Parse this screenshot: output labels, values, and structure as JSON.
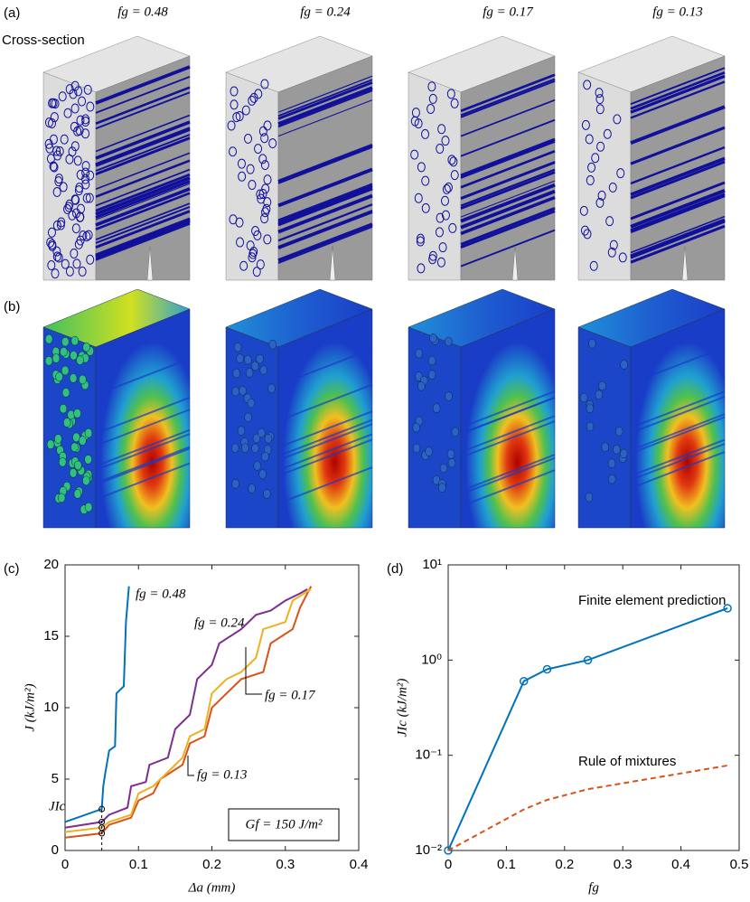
{
  "panel_a": {
    "label": "(a)",
    "cross_section": "Cross-section",
    "titles": [
      "fg = 0.48",
      "fg = 0.24",
      "fg = 0.17",
      "fg = 0.13"
    ]
  },
  "panel_b": {
    "label": "(b)"
  },
  "chart_data": [
    {
      "type": "line",
      "panel_label": "(c)",
      "x_label": "Δa (mm)",
      "y_label": "J (kJ/m²)",
      "xlim": [
        0,
        0.4
      ],
      "xticks": [
        0,
        0.1,
        0.2,
        0.3,
        0.4
      ],
      "ylim": [
        0,
        20
      ],
      "yticks": [
        0,
        5,
        10,
        15,
        20
      ],
      "annotations": [
        "fg = 0.48",
        "fg = 0.24",
        "fg = 0.17",
        "fg = 0.13",
        "JIc",
        "Gf = 150 J/m²"
      ],
      "series": [
        {
          "name": "fg = 0.48",
          "color": "#0072bd",
          "x": [
            0,
            0.05,
            0.052,
            0.055,
            0.06,
            0.068,
            0.07,
            0.08,
            0.083,
            0.087
          ],
          "values": [
            2.0,
            2.9,
            4.5,
            5.5,
            7.0,
            7.3,
            11.0,
            11.5,
            16.0,
            18.5
          ]
        },
        {
          "name": "fg = 0.24",
          "color": "#7e2f8e",
          "x": [
            0,
            0.05,
            0.06,
            0.085,
            0.09,
            0.11,
            0.115,
            0.14,
            0.15,
            0.17,
            0.18,
            0.2,
            0.21,
            0.24,
            0.26,
            0.28,
            0.3,
            0.32,
            0.33
          ],
          "values": [
            1.6,
            2.0,
            2.5,
            3.0,
            4.5,
            4.8,
            6.0,
            6.5,
            8.5,
            9.5,
            12.0,
            13.0,
            14.5,
            15.5,
            16.5,
            16.8,
            17.5,
            18.0,
            18.3
          ]
        },
        {
          "name": "fg = 0.17",
          "color": "#d95319",
          "x": [
            0,
            0.05,
            0.06,
            0.09,
            0.1,
            0.12,
            0.13,
            0.16,
            0.17,
            0.19,
            0.2,
            0.22,
            0.24,
            0.27,
            0.28,
            0.31,
            0.32,
            0.335
          ],
          "values": [
            0.9,
            1.2,
            1.8,
            2.3,
            3.5,
            4.0,
            5.0,
            6.0,
            7.5,
            8.0,
            10.0,
            11.0,
            12.0,
            12.5,
            14.5,
            15.5,
            17.0,
            18.5
          ]
        },
        {
          "name": "fg = 0.13",
          "color": "#edb120",
          "x": [
            0,
            0.05,
            0.06,
            0.09,
            0.1,
            0.12,
            0.14,
            0.16,
            0.17,
            0.19,
            0.2,
            0.22,
            0.24,
            0.26,
            0.27,
            0.3,
            0.31,
            0.335
          ],
          "values": [
            1.3,
            1.6,
            2.0,
            2.5,
            4.0,
            4.5,
            5.5,
            6.5,
            8.0,
            8.5,
            11.0,
            12.0,
            12.5,
            13.5,
            15.5,
            16.0,
            17.5,
            18.3
          ]
        }
      ]
    },
    {
      "type": "line",
      "panel_label": "(d)",
      "x_label": "fg",
      "y_label": "JIc (kJ/m²)",
      "log_y": true,
      "xlim": [
        0,
        0.5
      ],
      "xticks": [
        0,
        0.1,
        0.2,
        0.3,
        0.4,
        0.5
      ],
      "ylim": [
        0.01,
        10
      ],
      "yticks": [
        {
          "value": 0.01,
          "label": "10⁻²"
        },
        {
          "value": 0.1,
          "label": "10⁻¹"
        },
        {
          "value": 1,
          "label": "10⁰"
        },
        {
          "value": 10,
          "label": "10¹"
        }
      ],
      "annotations": [
        "Finite element prediction",
        "Rule of mixtures"
      ],
      "series": [
        {
          "name": "Finite element prediction",
          "color": "#0072bd",
          "markers": true,
          "dashed": false,
          "x": [
            0,
            0.13,
            0.17,
            0.24,
            0.48
          ],
          "values": [
            0.01,
            0.6,
            0.8,
            1.0,
            3.5
          ]
        },
        {
          "name": "Rule of mixtures",
          "color": "#d95319",
          "markers": false,
          "dashed": true,
          "x": [
            0,
            0.13,
            0.17,
            0.24,
            0.48
          ],
          "values": [
            0.01,
            0.027,
            0.034,
            0.044,
            0.078
          ]
        }
      ]
    }
  ]
}
